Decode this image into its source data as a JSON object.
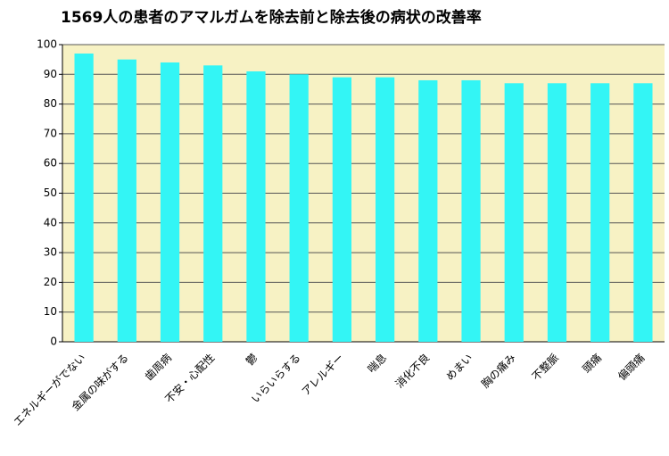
{
  "chart_data": {
    "type": "bar",
    "title": "1569人の患者のアマルガムを除去前と除去後の病状の改善率",
    "categories": [
      "エネルギーがでない",
      "金属の味がする",
      "歯周病",
      "不安・心配性",
      "鬱",
      "いらいらする",
      "アレルギー",
      "喘息",
      "消化不良",
      "めまい",
      "胸の痛み",
      "不整脈",
      "頭痛",
      "偏頭痛"
    ],
    "values": [
      97,
      95,
      94,
      93,
      91,
      90,
      89,
      89,
      88,
      88,
      87,
      87,
      87,
      87
    ],
    "color": "#33f5f5",
    "ylim": [
      0,
      100
    ],
    "yticks": [
      0,
      10,
      20,
      30,
      40,
      50,
      60,
      70,
      80,
      90,
      100
    ],
    "grid": true
  }
}
